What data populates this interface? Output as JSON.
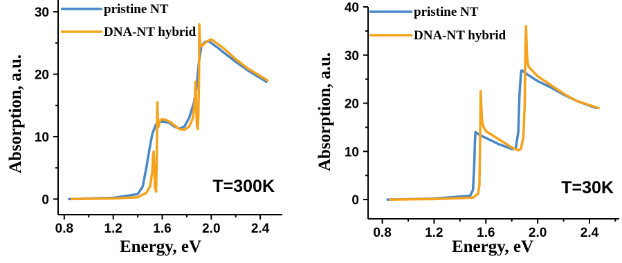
{
  "colors": {
    "pristine": "#4a87c6",
    "hybrid": "#f5a21c"
  },
  "chart_data": [
    {
      "type": "line",
      "xlabel": "Energy, eV",
      "ylabel": "Absorption, a.u.",
      "xlim": [
        0.75,
        2.58
      ],
      "ylim": [
        -2.5,
        33
      ],
      "xticks": [
        "0.8",
        "1.2",
        "1.6",
        "2.0",
        "2.4"
      ],
      "yticks": [
        "0",
        "10",
        "20",
        "30"
      ],
      "annotation": "T=300K",
      "legend_position": "top-left",
      "series": [
        {
          "name": "pristine NT",
          "color_key": "pristine",
          "x": [
            0.84,
            1.2,
            1.4,
            1.44,
            1.47,
            1.5,
            1.52,
            1.55,
            1.58,
            1.62,
            1.66,
            1.7,
            1.74,
            1.78,
            1.82,
            1.86,
            1.88,
            1.9,
            1.92,
            1.95,
            1.98,
            2.0,
            2.05,
            2.1,
            2.2,
            2.3,
            2.45
          ],
          "y": [
            0,
            0.2,
            0.8,
            2,
            5,
            8.5,
            10.5,
            12,
            12.4,
            12.4,
            12.2,
            11.6,
            11.3,
            11.6,
            13,
            15.5,
            18,
            22,
            24.5,
            25.2,
            25.3,
            25,
            24.3,
            23.5,
            22,
            20.6,
            18.8
          ]
        },
        {
          "name": "DNA-NT hybrid",
          "color_key": "hybrid",
          "x": [
            0.86,
            1.2,
            1.4,
            1.47,
            1.5,
            1.52,
            1.525,
            1.53,
            1.535,
            1.54,
            1.55,
            1.555,
            1.56,
            1.565,
            1.57,
            1.575,
            1.58,
            1.6,
            1.63,
            1.66,
            1.7,
            1.74,
            1.78,
            1.82,
            1.85,
            1.865,
            1.872,
            1.878,
            1.884,
            1.89,
            1.895,
            1.9,
            1.903,
            1.906,
            1.91,
            1.915,
            1.93,
            1.96,
            2.0,
            2.1,
            2.2,
            2.3,
            2.46
          ],
          "y": [
            0,
            0.1,
            0.3,
            1,
            2,
            4.5,
            7,
            7.6,
            5,
            2,
            1.2,
            6,
            15.5,
            12.5,
            11.6,
            12,
            12.6,
            12.8,
            12.7,
            12.4,
            11.8,
            11.2,
            11.1,
            11.6,
            13,
            15.5,
            18.8,
            14,
            11.7,
            11.2,
            13.5,
            19,
            28,
            26,
            25,
            24.5,
            24.6,
            25.2,
            25.6,
            24.2,
            22.4,
            20.9,
            19
          ]
        }
      ]
    },
    {
      "type": "line",
      "xlabel": "Energy, eV",
      "ylabel": "Absorption, a.u.",
      "xlim": [
        0.69,
        2.63
      ],
      "ylim": [
        -4,
        40
      ],
      "xticks": [
        "0.8",
        "1.2",
        "1.6",
        "2.0",
        "2.4"
      ],
      "yticks": [
        "0",
        "10",
        "20",
        "30",
        "40"
      ],
      "annotation": "T=30K",
      "legend_position": "top-left",
      "series": [
        {
          "name": "pristine NT",
          "color_key": "pristine",
          "x": [
            0.84,
            1.2,
            1.48,
            1.5,
            1.51,
            1.515,
            1.52,
            1.53,
            1.56,
            1.6,
            1.7,
            1.8,
            1.83,
            1.85,
            1.86,
            1.87,
            1.875,
            1.88,
            1.9,
            1.92,
            1.96,
            2.0,
            2.1,
            2.2,
            2.3,
            2.45
          ],
          "y": [
            0,
            0.2,
            0.8,
            2,
            7,
            12,
            14,
            13.8,
            13.3,
            12.8,
            11.5,
            10.5,
            10.6,
            14,
            22,
            26,
            26.8,
            26.8,
            26.4,
            26,
            25.3,
            24.6,
            23.3,
            21.8,
            20.5,
            19
          ]
        },
        {
          "name": "DNA-NT hybrid",
          "color_key": "hybrid",
          "x": [
            0.86,
            1.2,
            1.5,
            1.54,
            1.55,
            1.555,
            1.56,
            1.565,
            1.57,
            1.58,
            1.6,
            1.7,
            1.8,
            1.85,
            1.87,
            1.89,
            1.9,
            1.905,
            1.91,
            1.915,
            1.92,
            1.93,
            1.95,
            2.0,
            2.1,
            2.2,
            2.3,
            2.47
          ],
          "y": [
            0,
            0.1,
            0.4,
            1.2,
            3,
            12,
            22.5,
            19,
            16.5,
            15.2,
            14.2,
            12.5,
            10.8,
            10.2,
            10.5,
            13,
            20,
            30,
            36,
            32,
            29,
            27.6,
            27,
            25.6,
            23.8,
            22,
            20.5,
            19
          ]
        }
      ]
    }
  ]
}
